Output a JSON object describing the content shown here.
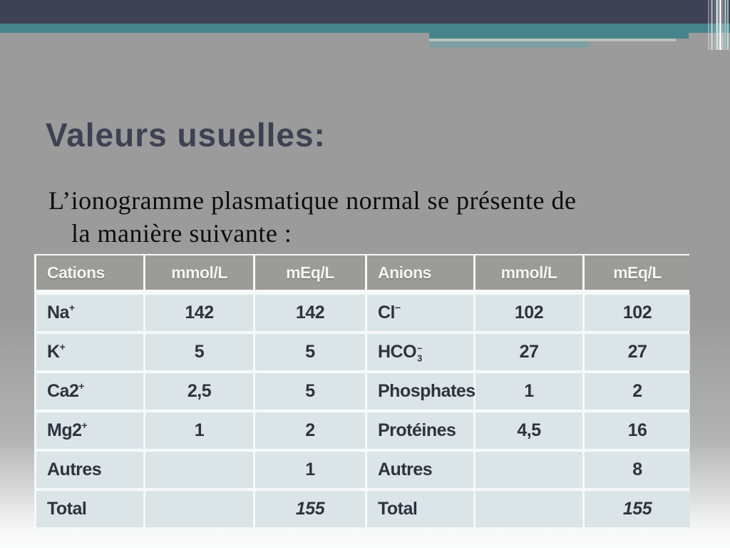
{
  "slide": {
    "title": "Valeurs usuelles:",
    "body_line1": "L’ionogramme plasmatique normal se présente de",
    "body_line2": "la manière suivante :"
  },
  "theme": {
    "top_bar_color": "#3e4253",
    "teal_color": "#47838b",
    "muted_teal": "#7fa0a2",
    "background_gray": "#9b9b9b",
    "header_bg": "#9b9b97",
    "row_bg": "#dbe5e8",
    "cell_text": "#2e333e",
    "title_color": "#3d4152"
  },
  "table": {
    "headers": [
      {
        "label": "Cations",
        "align": "left"
      },
      {
        "label": "mmol/L",
        "align": "center"
      },
      {
        "label": "mEq/L",
        "align": "center"
      },
      {
        "label": "Anions",
        "align": "left"
      },
      {
        "label": "mmol/L",
        "align": "center"
      },
      {
        "label": "mEq/L",
        "align": "center"
      }
    ],
    "rows": [
      [
        {
          "t": "Na",
          "sup": "+"
        },
        {
          "t": "142"
        },
        {
          "t": "142"
        },
        {
          "t": "Cl",
          "sup": "−"
        },
        {
          "t": "102"
        },
        {
          "t": "102"
        }
      ],
      [
        {
          "t": "K",
          "sup": "+"
        },
        {
          "t": "5"
        },
        {
          "t": "5"
        },
        {
          "t": "HCO",
          "sub": "3",
          "sup": "−"
        },
        {
          "t": "27"
        },
        {
          "t": "27"
        }
      ],
      [
        {
          "t": "Ca2",
          "sup": "+"
        },
        {
          "t": "2,5"
        },
        {
          "t": "5"
        },
        {
          "t": "Phosphates"
        },
        {
          "t": "1"
        },
        {
          "t": "2"
        }
      ],
      [
        {
          "t": "Mg2",
          "sup": "+"
        },
        {
          "t": "1"
        },
        {
          "t": "2"
        },
        {
          "t": "Protéines"
        },
        {
          "t": "4,5"
        },
        {
          "t": "16"
        }
      ],
      [
        {
          "t": "Autres"
        },
        {
          "t": ""
        },
        {
          "t": "1"
        },
        {
          "t": "Autres"
        },
        {
          "t": ""
        },
        {
          "t": "8"
        }
      ],
      [
        {
          "t": "Total"
        },
        {
          "t": ""
        },
        {
          "t": "155",
          "italic": true
        },
        {
          "t": "Total"
        },
        {
          "t": ""
        },
        {
          "t": "155",
          "italic": true
        }
      ]
    ]
  }
}
